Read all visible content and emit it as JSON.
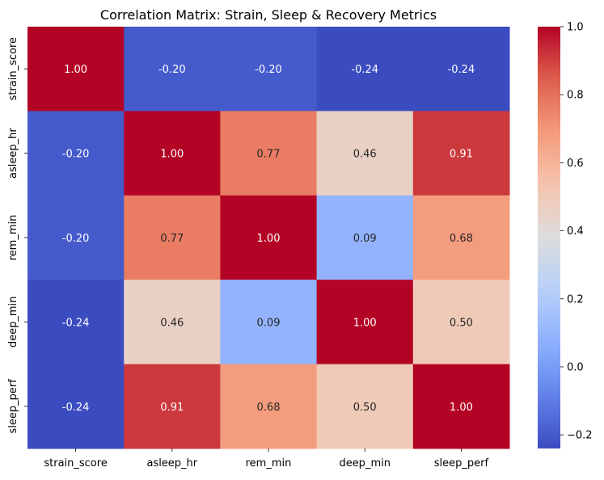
{
  "chart_data": {
    "type": "heatmap",
    "title": "Correlation Matrix: Strain, Sleep & Recovery Metrics",
    "x_labels": [
      "strain_score",
      "asleep_hr",
      "rem_min",
      "deep_min",
      "sleep_perf"
    ],
    "y_labels": [
      "strain_score",
      "asleep_hr",
      "rem_min",
      "deep_min",
      "sleep_perf"
    ],
    "values": [
      [
        1.0,
        -0.2,
        -0.2,
        -0.24,
        -0.24
      ],
      [
        -0.2,
        1.0,
        0.77,
        0.46,
        0.91
      ],
      [
        -0.2,
        0.77,
        1.0,
        0.09,
        0.68
      ],
      [
        -0.24,
        0.46,
        0.09,
        1.0,
        0.5
      ],
      [
        -0.24,
        0.91,
        0.68,
        0.5,
        1.0
      ]
    ],
    "value_labels": [
      [
        "1.00",
        "-0.20",
        "-0.20",
        "-0.24",
        "-0.24"
      ],
      [
        "-0.20",
        "1.00",
        "0.77",
        "0.46",
        "0.91"
      ],
      [
        "-0.20",
        "0.77",
        "1.00",
        "0.09",
        "0.68"
      ],
      [
        "-0.24",
        "0.46",
        "0.09",
        "1.00",
        "0.50"
      ],
      [
        "-0.24",
        "0.91",
        "0.68",
        "0.50",
        "1.00"
      ]
    ],
    "colorbar": {
      "range": [
        -0.24,
        1.0
      ],
      "ticks": [
        1.0,
        0.8,
        0.6,
        0.4,
        0.2,
        0.0,
        -0.2
      ],
      "tick_labels": [
        "1.0",
        "0.8",
        "0.6",
        "0.4",
        "0.2",
        "0.0",
        "−0.2"
      ],
      "colormap": "coolwarm"
    }
  }
}
